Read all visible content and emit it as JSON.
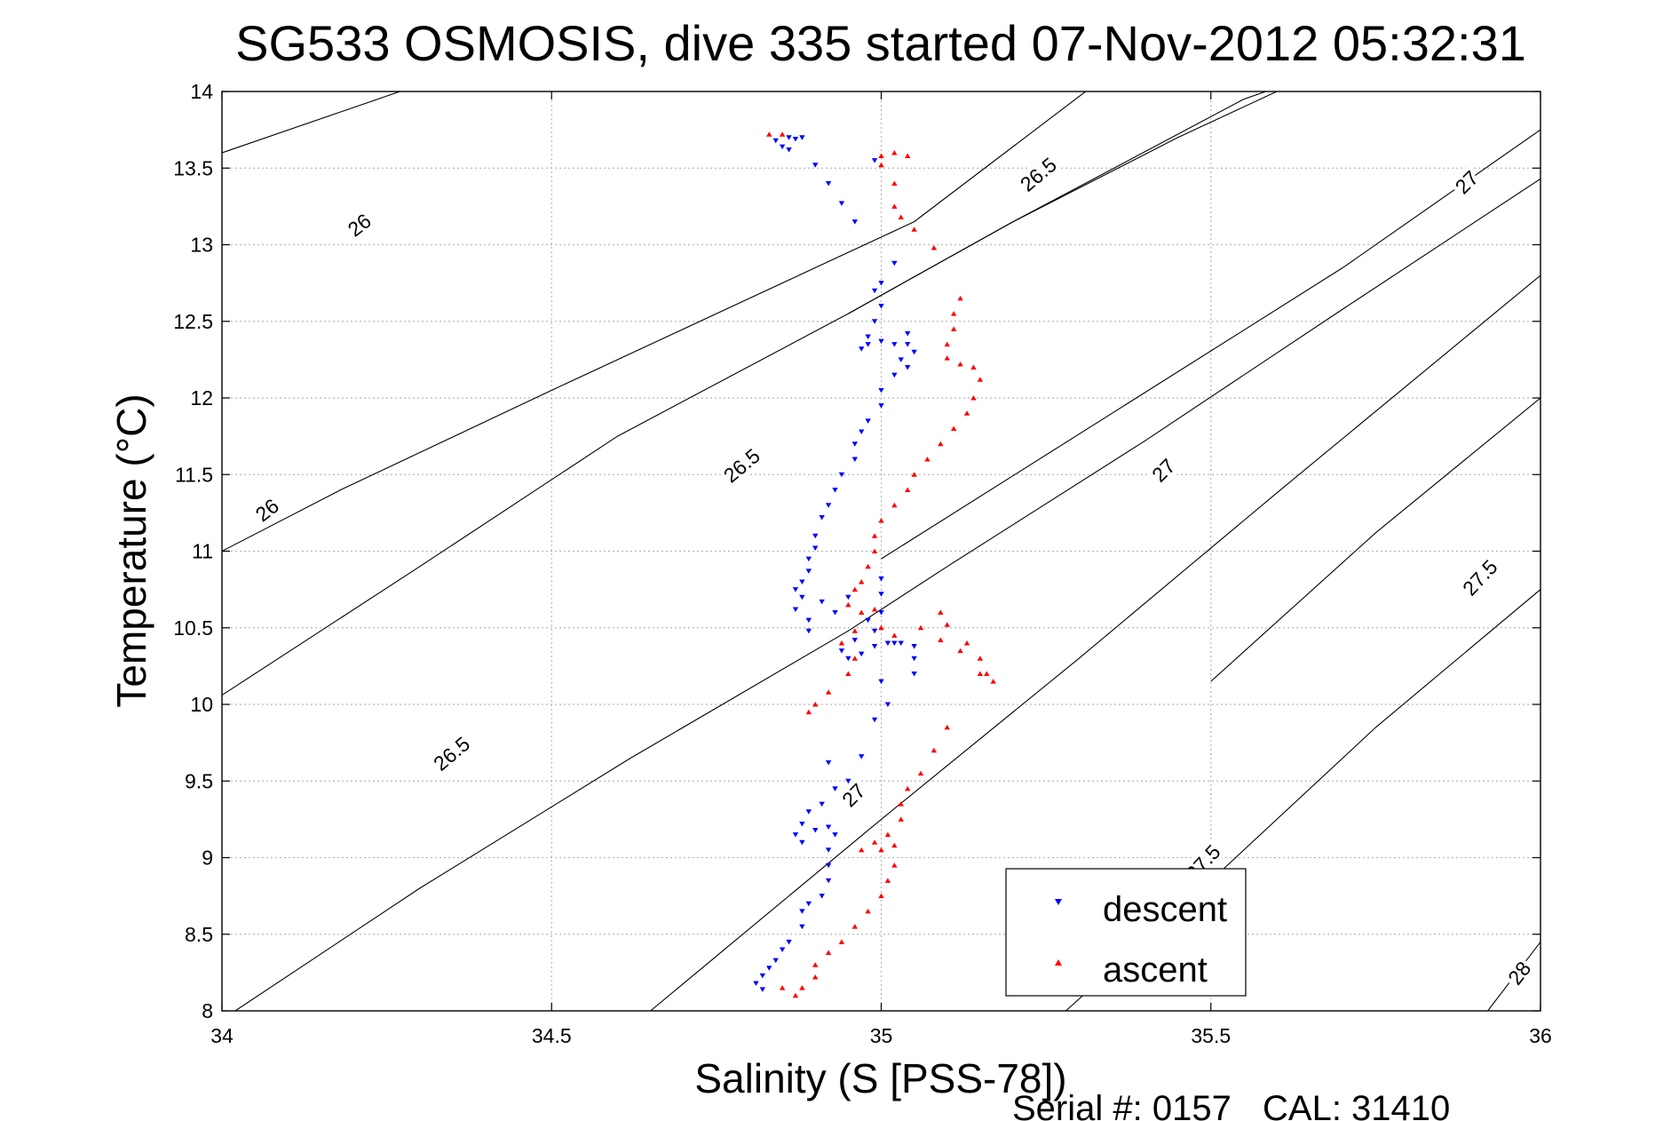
{
  "chart_data": {
    "type": "scatter",
    "title": "SG533 OSMOSIS, dive 335 started 07-Nov-2012 05:32:31",
    "xlabel": "Salinity (S [PSS-78])",
    "ylabel": "Temperature (°C)",
    "xlim": [
      34,
      36
    ],
    "ylim": [
      8,
      14
    ],
    "x_ticks": [
      "34",
      "34.5",
      "35",
      "35.5",
      "36"
    ],
    "y_ticks": [
      "8",
      "8.5",
      "9",
      "9.5",
      "10",
      "10.5",
      "11",
      "11.5",
      "12",
      "12.5",
      "13",
      "13.5",
      "14"
    ],
    "grid": true,
    "legend_position": "bottom-right",
    "density_contours": [
      {
        "sigma": "26",
        "points": [
          [
            34.0,
            13.6
          ],
          [
            34.27,
            14.0
          ]
        ]
      },
      {
        "sigma": "26",
        "points": [
          [
            34.0,
            11.0
          ],
          [
            34.18,
            11.4
          ],
          [
            34.5,
            12.05
          ],
          [
            34.9,
            12.85
          ],
          [
            35.05,
            13.15
          ],
          [
            35.31,
            14.0
          ]
        ]
      },
      {
        "sigma": "26.5",
        "points": [
          [
            34.02,
            8.0
          ],
          [
            34.3,
            8.8
          ],
          [
            34.62,
            9.65
          ],
          [
            34.95,
            10.48
          ],
          [
            35.1,
            10.9
          ],
          [
            35.4,
            11.72
          ],
          [
            35.7,
            12.58
          ],
          [
            36.0,
            13.43
          ]
        ]
      },
      {
        "sigma": "26.5",
        "points": [
          [
            34.0,
            10.06
          ],
          [
            34.3,
            10.9
          ],
          [
            34.6,
            11.75
          ],
          [
            34.95,
            12.55
          ],
          [
            35.2,
            13.15
          ],
          [
            35.45,
            13.7
          ],
          [
            35.6,
            14.0
          ]
        ]
      },
      {
        "sigma": "26.5",
        "points": [
          [
            34.95,
            12.55
          ],
          [
            35.2,
            13.15
          ],
          [
            35.55,
            13.95
          ],
          [
            35.65,
            14.1
          ]
        ]
      },
      {
        "sigma": "27",
        "points": [
          [
            34.65,
            8.0
          ],
          [
            35.0,
            9.25
          ],
          [
            35.3,
            10.3
          ],
          [
            35.6,
            11.38
          ],
          [
            36.0,
            12.8
          ]
        ]
      },
      {
        "sigma": "27",
        "points": [
          [
            35.0,
            10.95
          ],
          [
            35.35,
            11.9
          ],
          [
            35.7,
            12.85
          ],
          [
            36.0,
            13.75
          ]
        ]
      },
      {
        "sigma": "27.5",
        "points": [
          [
            35.28,
            8.0
          ],
          [
            35.5,
            8.85
          ],
          [
            35.75,
            9.85
          ],
          [
            36.0,
            10.75
          ]
        ]
      },
      {
        "sigma": "27.5",
        "points": [
          [
            35.5,
            10.15
          ],
          [
            35.75,
            11.12
          ],
          [
            36.0,
            12.0
          ]
        ]
      },
      {
        "sigma": "28",
        "points": [
          [
            35.92,
            8.0
          ],
          [
            36.0,
            8.45
          ]
        ]
      }
    ],
    "contour_labels": [
      {
        "text": "26",
        "x": 34.21,
        "y": 13.12,
        "angle": -38
      },
      {
        "text": "26",
        "x": 34.07,
        "y": 11.26,
        "angle": -38
      },
      {
        "text": "26.5",
        "x": 34.79,
        "y": 11.55,
        "angle": -40
      },
      {
        "text": "26.5",
        "x": 34.35,
        "y": 9.67,
        "angle": -40
      },
      {
        "text": "26.5",
        "x": 35.24,
        "y": 13.45,
        "angle": -40
      },
      {
        "text": "27",
        "x": 35.43,
        "y": 11.52,
        "angle": -45
      },
      {
        "text": "27",
        "x": 34.96,
        "y": 9.4,
        "angle": -45
      },
      {
        "text": "27",
        "x": 35.89,
        "y": 13.4,
        "angle": -45
      },
      {
        "text": "27.5",
        "x": 35.91,
        "y": 10.82,
        "angle": -47
      },
      {
        "text": "27.5",
        "x": 35.49,
        "y": 8.96,
        "angle": -47
      },
      {
        "text": "28",
        "x": 35.97,
        "y": 8.24,
        "angle": -52
      }
    ],
    "series": [
      {
        "name": "descent",
        "color": "#0000ff",
        "marker": "triangle-down",
        "points": [
          [
            34.84,
            13.68
          ],
          [
            34.86,
            13.7
          ],
          [
            34.87,
            13.69
          ],
          [
            34.85,
            13.64
          ],
          [
            34.86,
            13.62
          ],
          [
            34.88,
            13.7
          ],
          [
            34.9,
            13.52
          ],
          [
            34.92,
            13.4
          ],
          [
            34.94,
            13.27
          ],
          [
            34.96,
            13.15
          ],
          [
            34.99,
            13.55
          ],
          [
            35.02,
            12.88
          ],
          [
            35.0,
            12.75
          ],
          [
            34.99,
            12.7
          ],
          [
            35.0,
            12.6
          ],
          [
            34.99,
            12.5
          ],
          [
            34.98,
            12.4
          ],
          [
            34.97,
            12.32
          ],
          [
            34.98,
            12.35
          ],
          [
            35.0,
            12.37
          ],
          [
            35.02,
            12.35
          ],
          [
            35.04,
            12.35
          ],
          [
            35.04,
            12.42
          ],
          [
            35.05,
            12.3
          ],
          [
            35.03,
            12.25
          ],
          [
            35.04,
            12.2
          ],
          [
            35.02,
            12.15
          ],
          [
            35.0,
            12.05
          ],
          [
            35.0,
            11.95
          ],
          [
            34.98,
            11.85
          ],
          [
            34.97,
            11.78
          ],
          [
            34.96,
            11.7
          ],
          [
            34.96,
            11.6
          ],
          [
            34.94,
            11.5
          ],
          [
            34.93,
            11.4
          ],
          [
            34.92,
            11.3
          ],
          [
            34.91,
            11.22
          ],
          [
            34.9,
            11.1
          ],
          [
            34.9,
            11.02
          ],
          [
            34.89,
            10.95
          ],
          [
            34.89,
            10.87
          ],
          [
            34.88,
            10.8
          ],
          [
            34.87,
            10.75
          ],
          [
            34.88,
            10.7
          ],
          [
            34.87,
            10.62
          ],
          [
            34.89,
            10.55
          ],
          [
            34.89,
            10.48
          ],
          [
            34.91,
            10.67
          ],
          [
            34.93,
            10.6
          ],
          [
            34.95,
            10.7
          ],
          [
            35.0,
            10.82
          ],
          [
            35.0,
            10.72
          ],
          [
            35.0,
            10.6
          ],
          [
            34.98,
            10.55
          ],
          [
            34.99,
            10.48
          ],
          [
            34.96,
            10.42
          ],
          [
            34.94,
            10.35
          ],
          [
            34.95,
            10.3
          ],
          [
            34.97,
            10.33
          ],
          [
            34.99,
            10.38
          ],
          [
            35.01,
            10.4
          ],
          [
            35.03,
            10.4
          ],
          [
            35.05,
            10.38
          ],
          [
            35.05,
            10.3
          ],
          [
            35.05,
            10.2
          ],
          [
            35.02,
            10.4
          ],
          [
            35.01,
            10.0
          ],
          [
            34.99,
            9.9
          ],
          [
            35.0,
            10.15
          ],
          [
            34.97,
            9.66
          ],
          [
            34.95,
            9.5
          ],
          [
            34.93,
            9.45
          ],
          [
            34.92,
            9.62
          ],
          [
            34.91,
            9.35
          ],
          [
            34.89,
            9.3
          ],
          [
            34.88,
            9.22
          ],
          [
            34.87,
            9.15
          ],
          [
            34.88,
            9.1
          ],
          [
            34.9,
            9.18
          ],
          [
            34.92,
            9.2
          ],
          [
            34.93,
            9.15
          ],
          [
            34.92,
            9.05
          ],
          [
            34.92,
            8.95
          ],
          [
            34.92,
            8.85
          ],
          [
            34.91,
            8.75
          ],
          [
            34.89,
            8.7
          ],
          [
            34.88,
            8.65
          ],
          [
            34.88,
            8.55
          ],
          [
            34.86,
            8.45
          ],
          [
            34.85,
            8.4
          ],
          [
            34.84,
            8.33
          ],
          [
            34.83,
            8.28
          ],
          [
            34.82,
            8.23
          ],
          [
            34.81,
            8.18
          ],
          [
            34.82,
            8.14
          ]
        ]
      },
      {
        "name": "ascent",
        "color": "#ff0000",
        "marker": "triangle-up",
        "points": [
          [
            34.83,
            13.72
          ],
          [
            34.85,
            13.72
          ],
          [
            35.0,
            13.58
          ],
          [
            35.0,
            13.52
          ],
          [
            35.02,
            13.6
          ],
          [
            35.04,
            13.58
          ],
          [
            35.02,
            13.4
          ],
          [
            35.02,
            13.25
          ],
          [
            35.03,
            13.18
          ],
          [
            35.05,
            13.1
          ],
          [
            35.08,
            12.98
          ],
          [
            35.12,
            12.65
          ],
          [
            35.11,
            12.55
          ],
          [
            35.11,
            12.45
          ],
          [
            35.1,
            12.35
          ],
          [
            35.1,
            12.26
          ],
          [
            35.12,
            12.22
          ],
          [
            35.14,
            12.2
          ],
          [
            35.15,
            12.12
          ],
          [
            35.14,
            12.0
          ],
          [
            35.13,
            11.9
          ],
          [
            35.11,
            11.8
          ],
          [
            35.09,
            11.7
          ],
          [
            35.07,
            11.6
          ],
          [
            35.05,
            11.5
          ],
          [
            35.04,
            11.4
          ],
          [
            35.02,
            11.3
          ],
          [
            35.0,
            11.2
          ],
          [
            34.99,
            11.1
          ],
          [
            34.99,
            11.0
          ],
          [
            34.98,
            10.9
          ],
          [
            34.97,
            10.8
          ],
          [
            34.96,
            10.75
          ],
          [
            34.95,
            10.65
          ],
          [
            34.97,
            10.6
          ],
          [
            34.99,
            10.62
          ],
          [
            34.96,
            10.48
          ],
          [
            34.94,
            10.4
          ],
          [
            34.96,
            10.3
          ],
          [
            35.0,
            10.5
          ],
          [
            35.02,
            10.45
          ],
          [
            35.06,
            10.5
          ],
          [
            35.09,
            10.42
          ],
          [
            35.09,
            10.6
          ],
          [
            35.1,
            10.52
          ],
          [
            35.13,
            10.4
          ],
          [
            35.15,
            10.3
          ],
          [
            35.16,
            10.2
          ],
          [
            35.17,
            10.15
          ],
          [
            35.15,
            10.2
          ],
          [
            35.12,
            10.35
          ],
          [
            34.95,
            10.2
          ],
          [
            34.92,
            10.08
          ],
          [
            34.9,
            10.0
          ],
          [
            34.89,
            9.95
          ],
          [
            35.1,
            9.85
          ],
          [
            35.08,
            9.7
          ],
          [
            35.06,
            9.55
          ],
          [
            35.04,
            9.45
          ],
          [
            35.03,
            9.35
          ],
          [
            35.03,
            9.25
          ],
          [
            35.01,
            9.15
          ],
          [
            35.0,
            9.05
          ],
          [
            35.02,
            9.08
          ],
          [
            34.99,
            9.1
          ],
          [
            34.97,
            9.05
          ],
          [
            35.02,
            8.95
          ],
          [
            35.01,
            8.85
          ],
          [
            35.0,
            8.75
          ],
          [
            34.98,
            8.65
          ],
          [
            34.96,
            8.55
          ],
          [
            34.94,
            8.45
          ],
          [
            34.92,
            8.38
          ],
          [
            34.9,
            8.3
          ],
          [
            34.9,
            8.22
          ],
          [
            34.88,
            8.15
          ],
          [
            34.87,
            8.1
          ],
          [
            34.85,
            8.15
          ]
        ]
      }
    ]
  },
  "footer": {
    "serial": "Serial #: 0157",
    "cal": "CAL: 31410"
  }
}
